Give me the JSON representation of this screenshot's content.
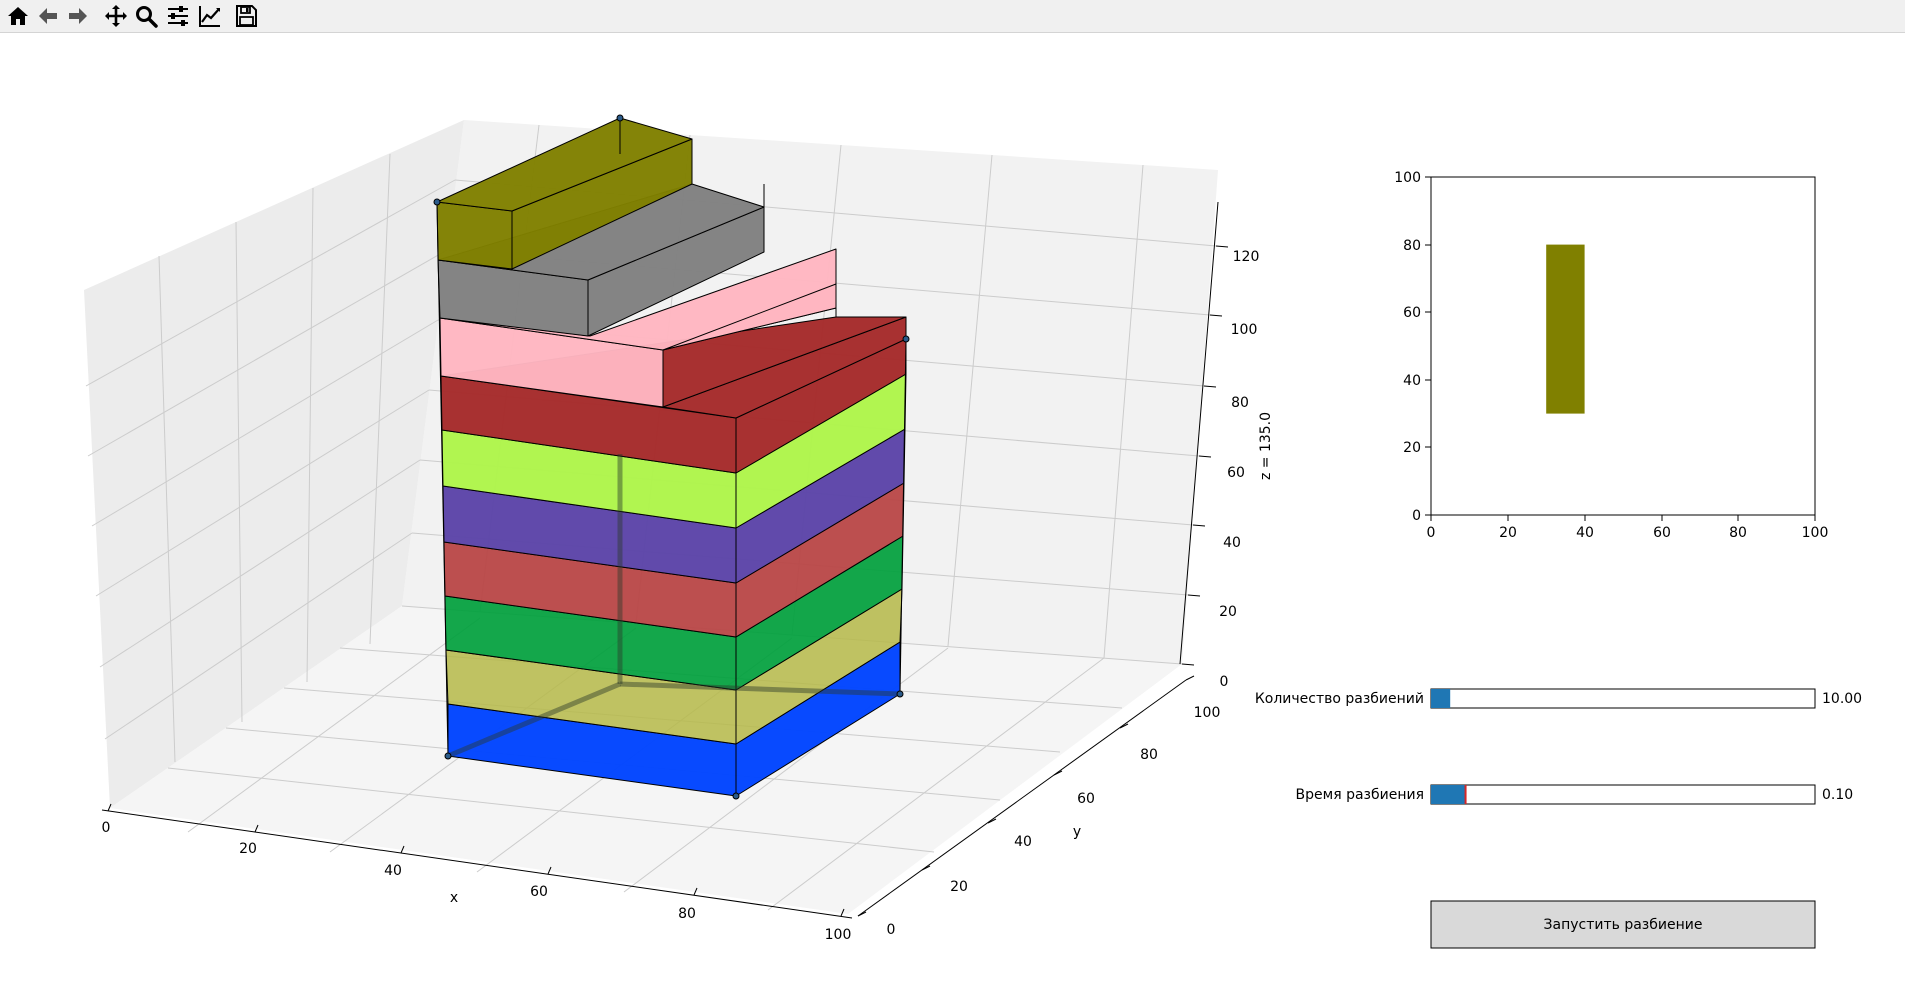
{
  "toolbar": {
    "buttons": [
      {
        "name": "home-icon"
      },
      {
        "name": "back-arrow-icon"
      },
      {
        "name": "forward-arrow-icon"
      },
      {
        "name": "pan-move-icon"
      },
      {
        "name": "zoom-magnifier-icon"
      },
      {
        "name": "configure-subplots-icon"
      },
      {
        "name": "edit-axis-icon"
      },
      {
        "name": "save-floppy-icon"
      }
    ]
  },
  "plot3d": {
    "x_label": "x",
    "y_label": "y",
    "z_label": "z = 135.0",
    "x_ticks": [
      "0",
      "20",
      "40",
      "60",
      "80",
      "100"
    ],
    "y_ticks": [
      "0",
      "20",
      "40",
      "60",
      "80",
      "100"
    ],
    "z_ticks": [
      "0",
      "20",
      "40",
      "60",
      "80",
      "100",
      "120"
    ],
    "layers": [
      {
        "color": "#0044ff"
      },
      {
        "color": "#b5b848"
      },
      {
        "color": "#00a03c"
      },
      {
        "color": "#b84646"
      },
      {
        "color": "#5c44a8"
      },
      {
        "color": "#aef54a"
      },
      {
        "color": "#a52a2a"
      },
      {
        "color": "#ffb6c1"
      },
      {
        "color": "#808080"
      },
      {
        "color": "#808000"
      }
    ]
  },
  "plot2d": {
    "x_ticks": [
      "0",
      "20",
      "40",
      "60",
      "80",
      "100"
    ],
    "y_ticks": [
      "0",
      "20",
      "40",
      "60",
      "80",
      "100"
    ],
    "xlim": [
      0,
      100
    ],
    "ylim": [
      0,
      100
    ],
    "rect": {
      "x": [
        30,
        40
      ],
      "y": [
        30,
        80
      ],
      "color": "#808000"
    }
  },
  "sliders": [
    {
      "label": "Количество разбиений",
      "value_text": "10.00",
      "fill": 0.05,
      "color": "#1f77b4"
    },
    {
      "label": "Время разбиения",
      "value_text": "0.10",
      "fill": 0.09,
      "color": "#1f77b4",
      "marker_color": "#d62728"
    }
  ],
  "run_button": {
    "label": "Запустить разбиение",
    "bg": "#d9d9d9"
  }
}
